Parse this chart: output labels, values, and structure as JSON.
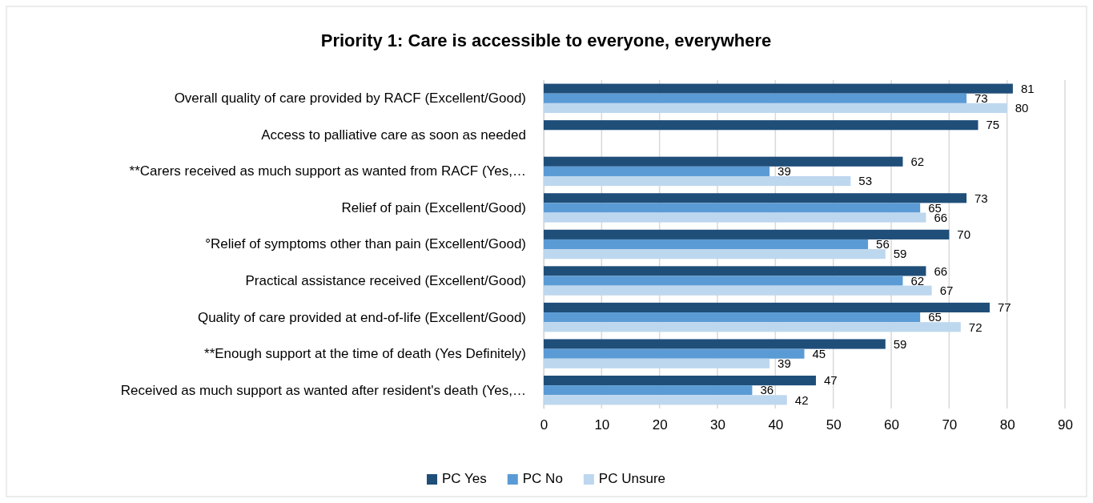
{
  "chart_data": {
    "type": "bar",
    "orientation": "horizontal",
    "title": "Priority 1: Care is accessible to everyone, everywhere",
    "categories": [
      "Overall quality of care provided by RACF (Excellent/Good)",
      "Access to palliative care as soon as needed",
      "**Carers received as much support as wanted from RACF (Yes,…",
      "Relief of pain (Excellent/Good)",
      "°Relief of symptoms other than pain (Excellent/Good)",
      "Practical assistance received (Excellent/Good)",
      "Quality of care provided at end-of-life (Excellent/Good)",
      "**Enough support at the time of death (Yes Definitely)",
      "Received as much support as wanted after resident's death (Yes,…"
    ],
    "series": [
      {
        "name": "PC Yes",
        "color": "#1f4e79",
        "values": [
          81,
          75,
          62,
          73,
          70,
          66,
          77,
          59,
          47
        ]
      },
      {
        "name": "PC No",
        "color": "#5b9bd5",
        "values": [
          73,
          null,
          39,
          65,
          56,
          62,
          65,
          45,
          36
        ]
      },
      {
        "name": "PC Unsure",
        "color": "#bdd7ee",
        "values": [
          80,
          null,
          53,
          66,
          59,
          67,
          72,
          39,
          42
        ]
      }
    ],
    "xlim": [
      0,
      90
    ],
    "xticks": [
      0,
      10,
      20,
      30,
      40,
      50,
      60,
      70,
      80,
      90
    ],
    "grid": "x",
    "legend": "bottom",
    "data_labels": true
  }
}
